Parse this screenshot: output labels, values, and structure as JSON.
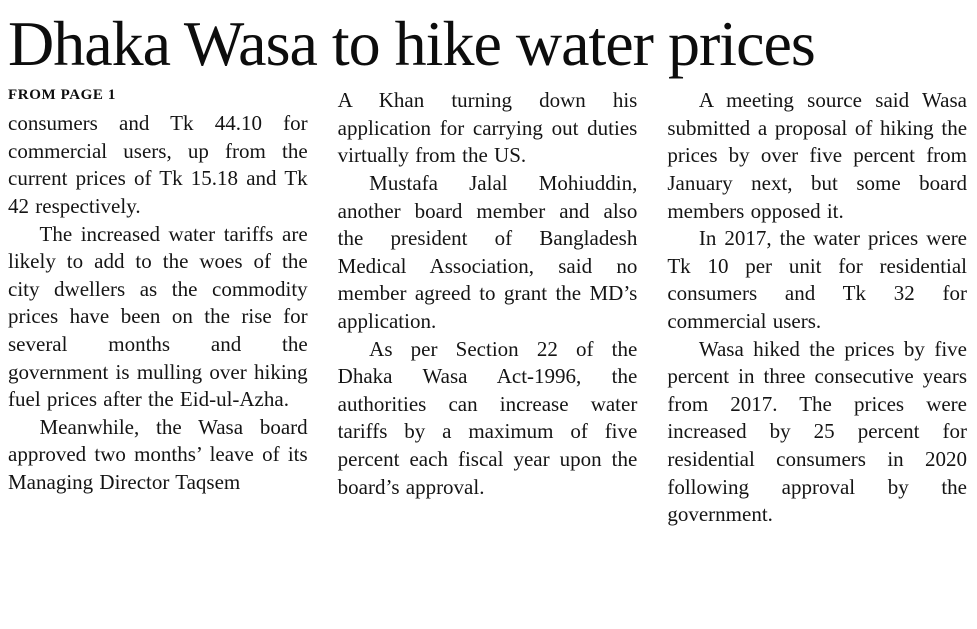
{
  "article": {
    "headline": "Dhaka Wasa to hike water prices",
    "kicker": "FROM PAGE 1",
    "columns": [
      {
        "paragraphs": [
          "consumers and Tk 44.10 for commercial users, up from the current prices of Tk 15.18 and Tk 42 respectively.",
          "The increased water tariffs are likely to add to the woes of the city dwellers as the commodity prices have been on the rise for several months and the government is mulling over hiking fuel prices after the Eid-ul-Azha.",
          "Meanwhile, the Wasa board approved two months’ leave of its Managing Director Taqsem"
        ]
      },
      {
        "paragraphs": [
          "A Khan turning down his application for carrying out duties virtually from the US.",
          "Mustafa Jalal Mohiuddin, another board member and also the president of Bangladesh Medical Association, said no member agreed to grant the MD’s application.",
          "As per Section 22 of the Dhaka Wasa Act-1996, the authorities can increase water tariffs by a maximum of five percent each fiscal year upon the board’s approval."
        ]
      },
      {
        "paragraphs": [
          "A meeting source said Wasa submitted a proposal of hiking the prices by over five percent from January next, but some board members opposed it.",
          "In 2017, the water prices were Tk 10 per unit for residential consumers and Tk 32 for commercial users.",
          "Wasa hiked the prices by five percent in three consecutive years from 2017. The prices were increased by 25 percent for residential consumers in 2020 following approval by the government."
        ]
      }
    ]
  }
}
